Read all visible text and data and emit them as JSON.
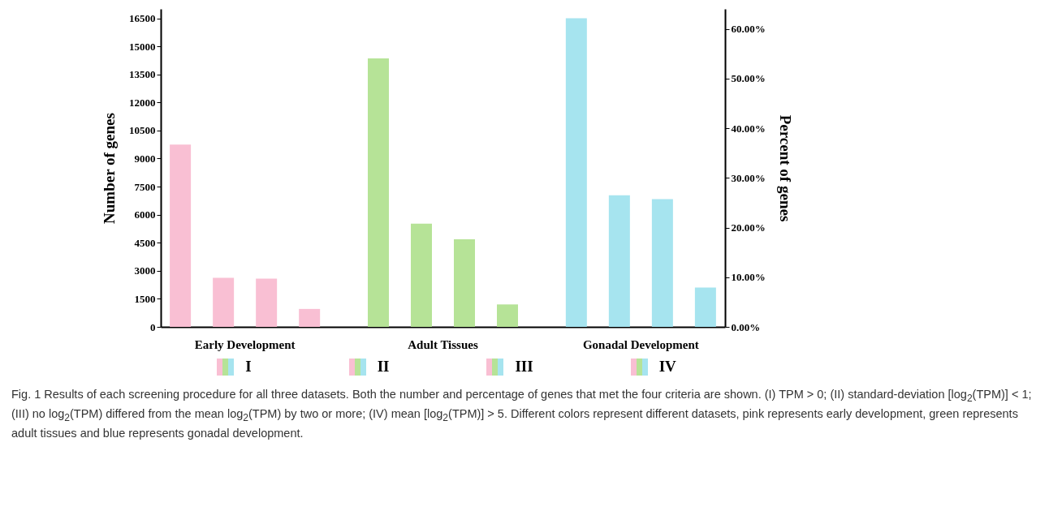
{
  "chart_data": {
    "type": "bar",
    "categories": [
      "Early Development",
      "Adult Tissues",
      "Gonadal Development"
    ],
    "ylabel": "Number of genes",
    "y2label": "Percent of genes",
    "ylim": [
      0,
      17000
    ],
    "yticks": [
      0,
      1500,
      3000,
      4500,
      6000,
      7500,
      9000,
      10500,
      12000,
      13500,
      15000,
      16500
    ],
    "y2lim": [
      0,
      64.0
    ],
    "y2ticks": [
      {
        "value": 0,
        "label": "0.00%"
      },
      {
        "value": 10,
        "label": "10.00%"
      },
      {
        "value": 20,
        "label": "20.00%"
      },
      {
        "value": 30,
        "label": "30.00%"
      },
      {
        "value": 40,
        "label": "40.00%"
      },
      {
        "value": 50,
        "label": "50.00%"
      },
      {
        "value": 60,
        "label": "60.00%"
      }
    ],
    "legend": "bottom",
    "series": [
      {
        "name": "I",
        "colors": [
          "#f9bfd3",
          "#b6e397",
          "#a6e4ef"
        ],
        "values": [
          9750,
          14350,
          16500
        ]
      },
      {
        "name": "II",
        "colors": [
          "#f9bfd3",
          "#b6e397",
          "#a6e4ef"
        ],
        "values": [
          2620,
          5520,
          7040
        ]
      },
      {
        "name": "III",
        "colors": [
          "#f9bfd3",
          "#b6e397",
          "#a6e4ef"
        ],
        "values": [
          2580,
          4680,
          6830
        ]
      },
      {
        "name": "IV",
        "colors": [
          "#f9bfd3",
          "#b6e397",
          "#a6e4ef"
        ],
        "values": [
          960,
          1200,
          2100
        ]
      }
    ],
    "annotations": [
      "Fig. 1 Results of each screening procedure for all three datasets. Both the number and percentage of genes that met the four criteria are shown. (I) TPM > 0; (II) standard-deviation [log$_{2}$(TPM)] < 1; (III) no log$_{2}$(TPM) differed from the mean log$_{2}$(TPM) by two or more; (IV) mean [log$_{2}$(TPM)] > 5. Different colors represent different datasets, pink represents early development, green represents adult tissues and blue represents gonadal development."
    ]
  }
}
